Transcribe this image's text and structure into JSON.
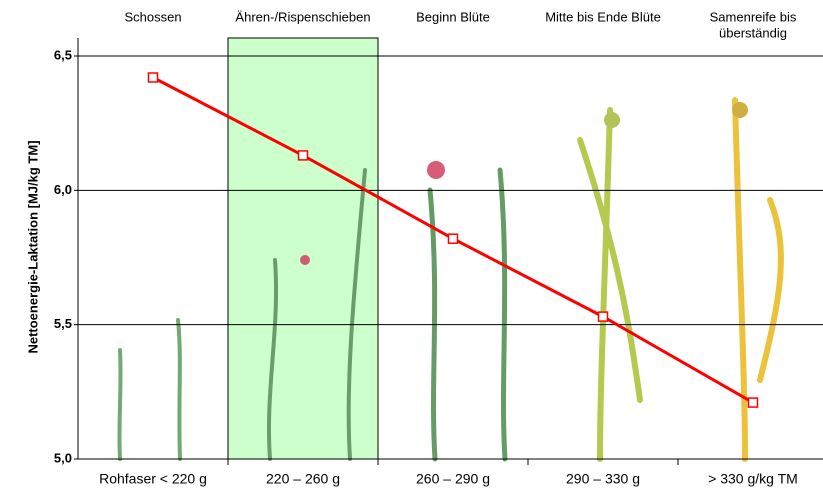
{
  "chart_data": {
    "type": "line",
    "y_label": "Nettoenergie-Laktation  [MJ/kg TM]",
    "stages": [
      [
        "Schossen"
      ],
      [
        "Ähren-/Rispenschieben"
      ],
      [
        "Beginn Blüte"
      ],
      [
        "Mitte bis Ende Blüte"
      ],
      [
        "Samenreife bis",
        "überständig"
      ]
    ],
    "categories": [
      "Rohfaser < 220 g",
      "220 – 260 g",
      "260 – 290 g",
      "290 – 330 g",
      "> 330 g/kg TM"
    ],
    "values": [
      6.42,
      6.13,
      5.82,
      5.53,
      5.21
    ],
    "color": "#ff0000",
    "highlight_category": 1,
    "highlight_color": "#ccffcc",
    "ylim": [
      5.0,
      6.5
    ],
    "yticks": [
      {
        "value": 5.0,
        "label": "5,0"
      },
      {
        "value": 5.5,
        "label": "5,5"
      },
      {
        "value": 6.0,
        "label": "6,0"
      },
      {
        "value": 6.5,
        "label": "6,5"
      }
    ],
    "grid": true
  }
}
